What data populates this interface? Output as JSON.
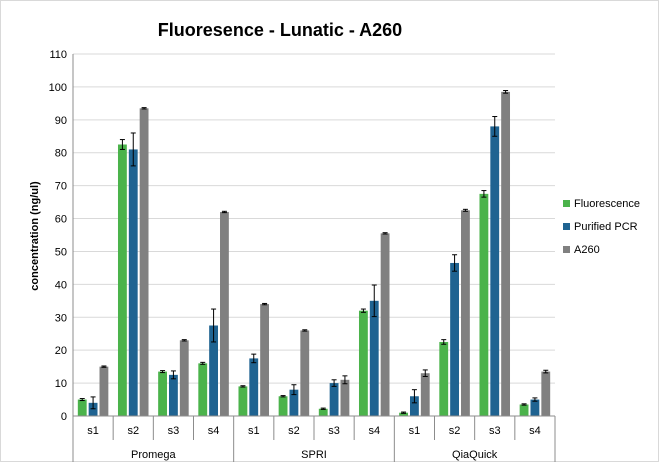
{
  "chart_data": {
    "type": "bar",
    "title": "Fluoresence - Lunatic - A260",
    "ylabel": "concentration (ng/ul)",
    "xlabel": "",
    "ylim": [
      0,
      110
    ],
    "yticks": [
      0,
      10,
      20,
      30,
      40,
      50,
      60,
      70,
      80,
      90,
      100,
      110
    ],
    "grid": true,
    "legend_position": "right",
    "groups": [
      {
        "name": "Promega",
        "categories": [
          "s1",
          "s2",
          "s3",
          "s4"
        ]
      },
      {
        "name": "SPRI",
        "categories": [
          "s1",
          "s2",
          "s3",
          "s4"
        ]
      },
      {
        "name": "QiaQuick",
        "categories": [
          "s1",
          "s2",
          "s3",
          "s4"
        ]
      }
    ],
    "series": [
      {
        "name": "Fluorescence",
        "color": "#4bb34b",
        "values": [
          5,
          82.5,
          13.5,
          16,
          9,
          6,
          2.2,
          32,
          1,
          22.5,
          67.5,
          3.5
        ],
        "errors": [
          0.3,
          1.5,
          0.3,
          0.3,
          0.2,
          0.2,
          0.2,
          0.5,
          0.2,
          0.7,
          1,
          0.2
        ]
      },
      {
        "name": "Purified PCR",
        "color": "#1f6391",
        "values": [
          4,
          81,
          12.5,
          27.5,
          17.5,
          8,
          10,
          35,
          6,
          46.5,
          88,
          5
        ],
        "errors": [
          1.8,
          5,
          1.2,
          5,
          1.3,
          1.5,
          1,
          4.8,
          2,
          2.5,
          3,
          0.5
        ]
      },
      {
        "name": "A260",
        "color": "#808080",
        "values": [
          15,
          93.5,
          23,
          62,
          34,
          26,
          11,
          55.5,
          13,
          62.5,
          98.5,
          13.5
        ],
        "errors": [
          0.2,
          0.2,
          0.2,
          0.2,
          0.2,
          0.2,
          1.2,
          0.2,
          1,
          0.3,
          0.4,
          0.4
        ]
      }
    ]
  }
}
